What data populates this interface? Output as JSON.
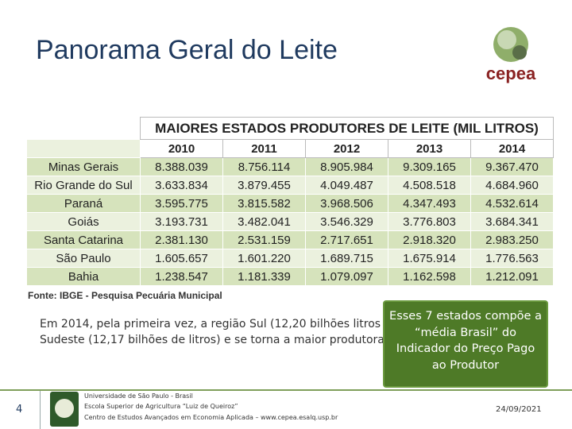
{
  "title": "Panorama Geral do Leite",
  "logo": {
    "text": "cepea"
  },
  "table": {
    "caption": "MAIORES ESTADOS PRODUTORES DE LEITE (MIL LITROS)",
    "header": [
      "2010",
      "2011",
      "2012",
      "2013",
      "2014"
    ],
    "rows": [
      [
        "Minas Gerais",
        "8.388.039",
        "8.756.114",
        "8.905.984",
        "9.309.165",
        "9.367.470"
      ],
      [
        "Rio Grande do Sul",
        "3.633.834",
        "3.879.455",
        "4.049.487",
        "4.508.518",
        "4.684.960"
      ],
      [
        "Paraná",
        "3.595.775",
        "3.815.582",
        "3.968.506",
        "4.347.493",
        "4.532.614"
      ],
      [
        "Goiás",
        "3.193.731",
        "3.482.041",
        "3.546.329",
        "3.776.803",
        "3.684.341"
      ],
      [
        "Santa Catarina",
        "2.381.130",
        "2.531.159",
        "2.717.651",
        "2.918.320",
        "2.983.250"
      ],
      [
        "São Paulo",
        "1.605.657",
        "1.601.220",
        "1.689.715",
        "1.675.914",
        "1.776.563"
      ],
      [
        "Bahia",
        "1.238.547",
        "1.181.339",
        "1.079.097",
        "1.162.598",
        "1.212.091"
      ]
    ]
  },
  "source": "Fonte: IBGE - Pesquisa Pecuária Municipal",
  "paragraph": [
    "Em 2014, pela primeira vez, a região Sul (12,20 bilhões litros",
    "Sudeste (12,17 bilhões de litros) e se torna a maior produtora"
  ],
  "callout": [
    "Esses 7 estados compõe a",
    "“média Brasil” do",
    "Indicador do Preço Pago",
    "ao Produtor"
  ],
  "footer": {
    "page": "4",
    "lines": [
      "Universidade de São Paulo - Brasil",
      "Escola Superior de Agricultura “Luiz de Queiroz”",
      "Centro de Estudos Avançados em Economia Aplicada – www.cepea.esalq.usp.br"
    ],
    "date": "24/09/2021"
  }
}
